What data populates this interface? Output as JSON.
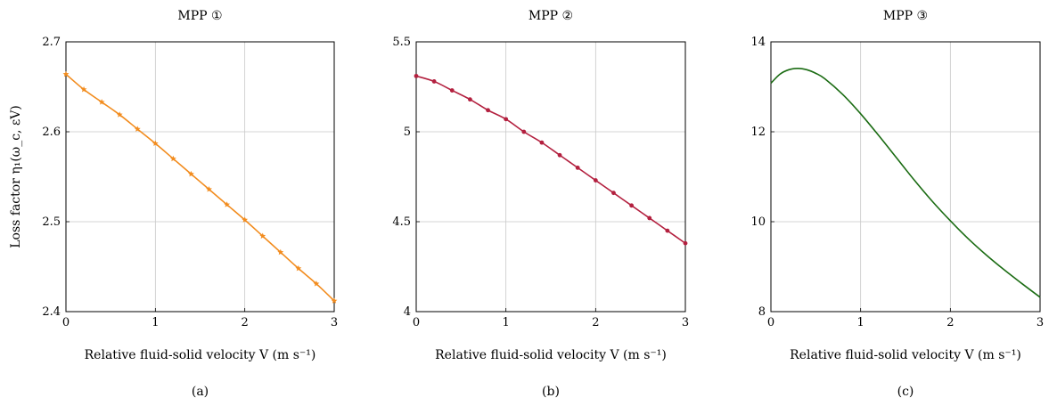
{
  "chart_data": [
    {
      "type": "line",
      "title": "MPP ①",
      "caption": "(a)",
      "xlabel": "Relative fluid-solid velocity V (m s⁻¹)",
      "ylabel": "Loss factor η₁(ω_c, εV)",
      "xlim": [
        0,
        3
      ],
      "ylim": [
        2.4,
        2.7
      ],
      "xticks": [
        "0",
        "1",
        "2",
        "3"
      ],
      "yticks": [
        "2.4",
        "2.5",
        "2.6",
        "2.7"
      ],
      "grid": true,
      "color": "#F28C1E",
      "marker": "star",
      "series": [
        {
          "x": [
            0,
            0.2,
            0.4,
            0.6,
            0.8,
            1.0,
            1.2,
            1.4,
            1.6,
            1.8,
            2.0,
            2.2,
            2.4,
            2.6,
            2.8,
            3.0
          ],
          "values": [
            2.664,
            2.647,
            2.633,
            2.619,
            2.603,
            2.587,
            2.57,
            2.553,
            2.536,
            2.519,
            2.502,
            2.484,
            2.466,
            2.448,
            2.431,
            2.412
          ]
        }
      ]
    },
    {
      "type": "line",
      "title": "MPP ②",
      "caption": "(b)",
      "xlabel": "Relative fluid-solid velocity V (m s⁻¹)",
      "ylabel": "",
      "xlim": [
        0,
        3
      ],
      "ylim": [
        4,
        5.5
      ],
      "xticks": [
        "0",
        "1",
        "2",
        "3"
      ],
      "yticks": [
        "4",
        "4.5",
        "5",
        "5.5"
      ],
      "grid": true,
      "color": "#B3203F",
      "marker": "circle",
      "series": [
        {
          "x": [
            0,
            0.2,
            0.4,
            0.6,
            0.8,
            1.0,
            1.2,
            1.4,
            1.6,
            1.8,
            2.0,
            2.2,
            2.4,
            2.6,
            2.8,
            3.0
          ],
          "values": [
            5.31,
            5.28,
            5.23,
            5.18,
            5.12,
            5.07,
            5.0,
            4.94,
            4.87,
            4.8,
            4.73,
            4.66,
            4.59,
            4.52,
            4.45,
            4.38
          ]
        }
      ]
    },
    {
      "type": "line",
      "title": "MPP ③",
      "caption": "(c)",
      "xlabel": "Relative fluid-solid velocity V (m s⁻¹)",
      "ylabel": "",
      "xlim": [
        0,
        3
      ],
      "ylim": [
        8,
        14
      ],
      "xticks": [
        "0",
        "1",
        "2",
        "3"
      ],
      "yticks": [
        "8",
        "10",
        "12",
        "14"
      ],
      "grid": true,
      "color": "#1A6B12",
      "marker": "none",
      "series": [
        {
          "x": [
            0,
            0.1,
            0.2,
            0.3,
            0.4,
            0.5,
            0.6,
            0.8,
            1.0,
            1.2,
            1.4,
            1.6,
            1.8,
            2.0,
            2.2,
            2.4,
            2.6,
            2.8,
            3.0
          ],
          "values": [
            13.08,
            13.28,
            13.38,
            13.41,
            13.38,
            13.3,
            13.18,
            12.83,
            12.4,
            11.92,
            11.42,
            10.92,
            10.45,
            10.02,
            9.62,
            9.26,
            8.93,
            8.62,
            8.32
          ]
        }
      ]
    }
  ]
}
